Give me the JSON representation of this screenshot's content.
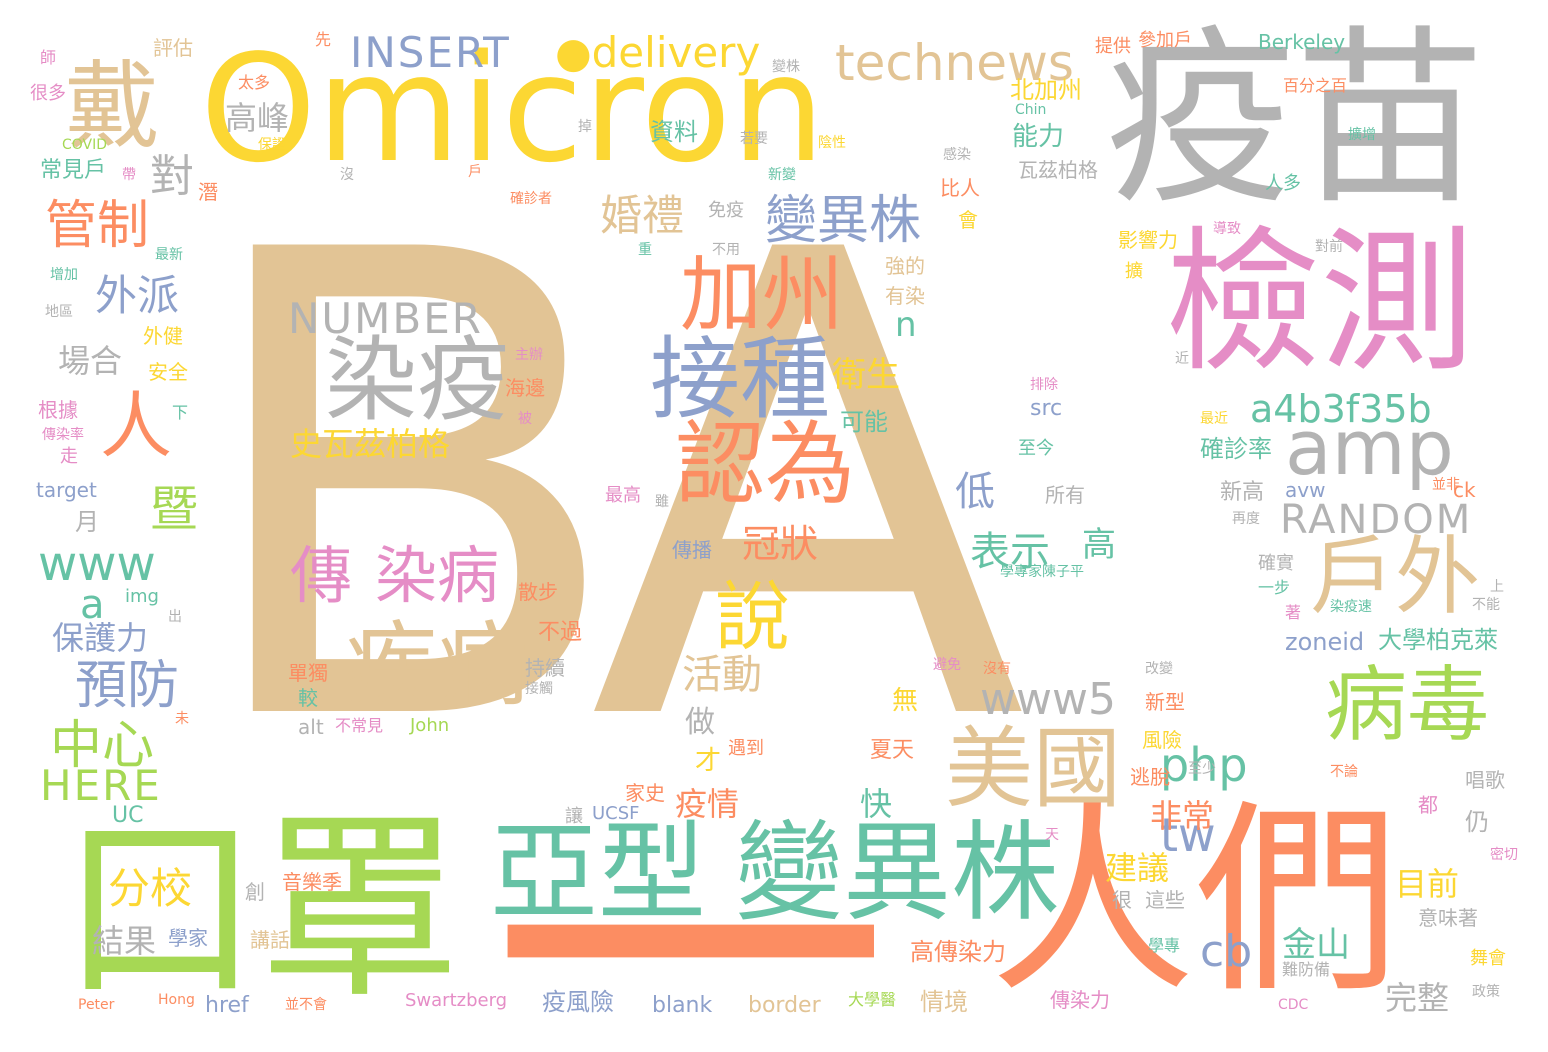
{
  "palette": {
    "tan": "#e2c495",
    "yellow": "#fcd733",
    "gray": "#b3b3b3",
    "pink": "#e58dc6",
    "orange": "#fc8d62",
    "green": "#a6d854",
    "teal": "#66c2a5",
    "blue": "#8da0cb"
  },
  "words": [
    {
      "text": "BA",
      "color": "tan"
    },
    {
      "text": "Omicron",
      "color": "yellow"
    },
    {
      "text": "疫苗",
      "color": "gray"
    },
    {
      "text": "檢測",
      "color": "pink"
    },
    {
      "text": "口罩",
      "color": "green"
    },
    {
      "text": "人們",
      "color": "orange"
    },
    {
      "text": "亞型",
      "color": "teal"
    },
    {
      "text": "變異株",
      "color": "teal"
    },
    {
      "text": "一",
      "color": "orange"
    },
    {
      "text": "戴",
      "color": "tan"
    },
    {
      "text": "染疫",
      "color": "gray"
    },
    {
      "text": "疾病",
      "color": "tan"
    },
    {
      "text": "接種",
      "color": "blue"
    },
    {
      "text": "認為",
      "color": "orange"
    },
    {
      "text": "加州",
      "color": "orange"
    },
    {
      "text": "說",
      "color": "yellow"
    },
    {
      "text": "美國",
      "color": "tan"
    },
    {
      "text": "病毒",
      "color": "green"
    },
    {
      "text": "戶外",
      "color": "tan"
    },
    {
      "text": "amp",
      "color": "gray"
    },
    {
      "text": "technews",
      "color": "tan"
    },
    {
      "text": "INSERT",
      "color": "blue"
    },
    {
      "text": "●delivery",
      "color": "yellow"
    },
    {
      "text": "人",
      "color": "orange"
    },
    {
      "text": "傳",
      "color": "pink"
    },
    {
      "text": "染病",
      "color": "pink"
    },
    {
      "text": "變異株",
      "color": "blue"
    },
    {
      "text": "NUMBER",
      "color": "gray"
    },
    {
      "text": "a4b3f35b",
      "color": "teal"
    },
    {
      "text": "RANDOM",
      "color": "gray"
    },
    {
      "text": "www5",
      "color": "gray"
    },
    {
      "text": "www",
      "color": "teal"
    },
    {
      "text": "HERE",
      "color": "green"
    },
    {
      "text": "預防",
      "color": "blue"
    },
    {
      "text": "管制",
      "color": "orange"
    },
    {
      "text": "中心",
      "color": "green"
    },
    {
      "text": "php",
      "color": "teal"
    },
    {
      "text": "tw",
      "color": "blue"
    },
    {
      "text": "cb",
      "color": "blue"
    },
    {
      "text": "分校",
      "color": "yellow"
    },
    {
      "text": "婚禮",
      "color": "tan"
    },
    {
      "text": "外派",
      "color": "blue"
    },
    {
      "text": "暨",
      "color": "green"
    },
    {
      "text": "對",
      "color": "gray"
    },
    {
      "text": "高峰",
      "color": "gray"
    },
    {
      "text": "活動",
      "color": "tan"
    },
    {
      "text": "冠狀",
      "color": "orange"
    },
    {
      "text": "表示",
      "color": "teal"
    },
    {
      "text": "高",
      "color": "teal"
    },
    {
      "text": "低",
      "color": "blue"
    },
    {
      "text": "衛生",
      "color": "yellow"
    },
    {
      "text": "史瓦茲柏格",
      "color": "yellow"
    },
    {
      "text": "結果",
      "color": "gray"
    },
    {
      "text": "保護力",
      "color": "blue"
    },
    {
      "text": "金山",
      "color": "teal"
    },
    {
      "text": "目前",
      "color": "yellow"
    },
    {
      "text": "建議",
      "color": "yellow"
    },
    {
      "text": "非常",
      "color": "orange"
    },
    {
      "text": "完整",
      "color": "gray"
    },
    {
      "text": "疫情",
      "color": "orange"
    },
    {
      "text": "快",
      "color": "teal"
    },
    {
      "text": "做",
      "color": "gray"
    },
    {
      "text": "能力",
      "color": "teal"
    },
    {
      "text": "資料",
      "color": "teal"
    },
    {
      "text": "北加州",
      "color": "yellow"
    },
    {
      "text": "Berkeley",
      "color": "teal"
    },
    {
      "text": "zoneid",
      "color": "blue"
    },
    {
      "text": "大學柏克萊",
      "color": "teal"
    },
    {
      "text": "場合",
      "color": "gray"
    },
    {
      "text": "月",
      "color": "gray"
    },
    {
      "text": "a",
      "color": "teal"
    },
    {
      "text": "n",
      "color": "teal"
    },
    {
      "text": "可能",
      "color": "teal"
    },
    {
      "text": "src",
      "color": "blue"
    },
    {
      "text": "確診率",
      "color": "teal"
    },
    {
      "text": "新高",
      "color": "gray"
    },
    {
      "text": "avw",
      "color": "blue"
    },
    {
      "text": "高傳染力",
      "color": "orange"
    },
    {
      "text": "情境",
      "color": "tan"
    },
    {
      "text": "疫風險",
      "color": "blue"
    },
    {
      "text": "blank",
      "color": "blue"
    },
    {
      "text": "border",
      "color": "tan"
    },
    {
      "text": "Swartzberg",
      "color": "pink"
    },
    {
      "text": "href",
      "color": "blue"
    },
    {
      "text": "傳染力",
      "color": "pink"
    },
    {
      "text": "講話",
      "color": "tan"
    },
    {
      "text": "學家",
      "color": "blue"
    },
    {
      "text": "UC",
      "color": "teal"
    },
    {
      "text": "UCSF",
      "color": "blue"
    },
    {
      "text": "家史",
      "color": "orange"
    },
    {
      "text": "音樂季",
      "color": "orange"
    },
    {
      "text": "John",
      "color": "green"
    },
    {
      "text": "alt",
      "color": "gray"
    },
    {
      "text": "不常見",
      "color": "pink"
    },
    {
      "text": "無",
      "color": "yellow"
    },
    {
      "text": "夏天",
      "color": "orange"
    },
    {
      "text": "傳播",
      "color": "blue"
    },
    {
      "text": "img",
      "color": "teal"
    },
    {
      "text": "target",
      "color": "blue"
    },
    {
      "text": "常見戶",
      "color": "teal"
    },
    {
      "text": "COVID",
      "color": "green"
    },
    {
      "text": "評估",
      "color": "tan"
    },
    {
      "text": "先",
      "color": "orange"
    },
    {
      "text": "提供",
      "color": "orange"
    },
    {
      "text": "參加戶",
      "color": "orange"
    },
    {
      "text": "百分之百",
      "color": "orange"
    },
    {
      "text": "瓦茲柏格",
      "color": "gray"
    },
    {
      "text": "免疫",
      "color": "gray"
    },
    {
      "text": "影響力",
      "color": "yellow"
    },
    {
      "text": "強的",
      "color": "tan"
    },
    {
      "text": "有染",
      "color": "tan"
    },
    {
      "text": "散步",
      "color": "orange"
    },
    {
      "text": "不過",
      "color": "orange"
    },
    {
      "text": "持續",
      "color": "gray"
    },
    {
      "text": "單獨",
      "color": "orange"
    },
    {
      "text": "遇到",
      "color": "orange"
    },
    {
      "text": "風險",
      "color": "yellow"
    },
    {
      "text": "新型",
      "color": "orange"
    },
    {
      "text": "逃脫",
      "color": "orange"
    },
    {
      "text": "意味著",
      "color": "gray"
    },
    {
      "text": "這些",
      "color": "gray"
    },
    {
      "text": "學專",
      "color": "teal"
    },
    {
      "text": "難防備",
      "color": "gray"
    },
    {
      "text": "唱歌",
      "color": "gray"
    },
    {
      "text": "比人",
      "color": "orange"
    },
    {
      "text": "至今",
      "color": "teal"
    },
    {
      "text": "所有",
      "color": "gray"
    },
    {
      "text": "最高",
      "color": "pink"
    },
    {
      "text": "確實",
      "color": "gray"
    },
    {
      "text": "一步",
      "color": "teal"
    },
    {
      "text": "著",
      "color": "pink"
    },
    {
      "text": "地區",
      "color": "gray"
    },
    {
      "text": "增加",
      "color": "teal"
    },
    {
      "text": "外健",
      "color": "yellow"
    },
    {
      "text": "安全",
      "color": "yellow"
    },
    {
      "text": "根據",
      "color": "pink"
    },
    {
      "text": "傳染率",
      "color": "pink"
    },
    {
      "text": "走",
      "color": "pink"
    },
    {
      "text": "很多",
      "color": "pink"
    },
    {
      "text": "太多",
      "color": "orange"
    },
    {
      "text": "保證",
      "color": "yellow"
    },
    {
      "text": "最新",
      "color": "teal"
    },
    {
      "text": "主辦",
      "color": "pink"
    },
    {
      "text": "海邊",
      "color": "orange"
    },
    {
      "text": "Peter",
      "color": "orange"
    },
    {
      "text": "Hong",
      "color": "orange"
    },
    {
      "text": "並不會",
      "color": "orange"
    },
    {
      "text": "大學醫",
      "color": "green"
    },
    {
      "text": "CDC",
      "color": "pink"
    },
    {
      "text": "政策",
      "color": "gray"
    },
    {
      "text": "ck",
      "color": "orange"
    },
    {
      "text": "並非",
      "color": "orange"
    },
    {
      "text": "密切",
      "color": "pink"
    },
    {
      "text": "舞會",
      "color": "yellow"
    },
    {
      "text": "學專家陳子平",
      "color": "teal"
    },
    {
      "text": "導致",
      "color": "pink"
    },
    {
      "text": "對前",
      "color": "gray"
    },
    {
      "text": "擴增",
      "color": "teal"
    },
    {
      "text": "陰性",
      "color": "yellow"
    },
    {
      "text": "若要",
      "color": "gray"
    },
    {
      "text": "感染",
      "color": "gray"
    },
    {
      "text": "新變",
      "color": "teal"
    },
    {
      "text": "確診者",
      "color": "orange"
    },
    {
      "text": "不用",
      "color": "gray"
    },
    {
      "text": "會",
      "color": "yellow"
    },
    {
      "text": "變株",
      "color": "gray"
    },
    {
      "text": "沒",
      "color": "gray"
    },
    {
      "text": "戶",
      "color": "orange"
    },
    {
      "text": "接觸",
      "color": "gray"
    },
    {
      "text": "沒有",
      "color": "orange"
    },
    {
      "text": "避免",
      "color": "pink"
    },
    {
      "text": "改變",
      "color": "gray"
    },
    {
      "text": "至少",
      "color": "gray"
    },
    {
      "text": "不論",
      "color": "orange"
    },
    {
      "text": "天",
      "color": "pink"
    },
    {
      "text": "很",
      "color": "gray"
    },
    {
      "text": "創",
      "color": "gray"
    },
    {
      "text": "讓",
      "color": "gray"
    },
    {
      "text": "才",
      "color": "yellow"
    },
    {
      "text": "較",
      "color": "teal"
    },
    {
      "text": "都",
      "color": "pink"
    },
    {
      "text": "仍",
      "color": "gray"
    },
    {
      "text": "最近",
      "color": "yellow"
    },
    {
      "text": "擴",
      "color": "yellow"
    },
    {
      "text": "排除",
      "color": "pink"
    },
    {
      "text": "近",
      "color": "gray"
    },
    {
      "text": "染疫速",
      "color": "teal"
    },
    {
      "text": "不能",
      "color": "gray"
    },
    {
      "text": "上",
      "color": "gray"
    },
    {
      "text": "再度",
      "color": "gray"
    },
    {
      "text": "雖",
      "color": "gray"
    },
    {
      "text": "被",
      "color": "pink"
    },
    {
      "text": "下",
      "color": "teal"
    },
    {
      "text": "出",
      "color": "gray"
    },
    {
      "text": "未",
      "color": "orange"
    },
    {
      "text": "潛",
      "color": "orange"
    },
    {
      "text": "帶",
      "color": "pink"
    },
    {
      "text": "師",
      "color": "pink"
    },
    {
      "text": "掉",
      "color": "gray"
    },
    {
      "text": "Chin",
      "color": "teal"
    },
    {
      "text": "重",
      "color": "teal"
    },
    {
      "text": "人多",
      "color": "teal"
    }
  ]
}
